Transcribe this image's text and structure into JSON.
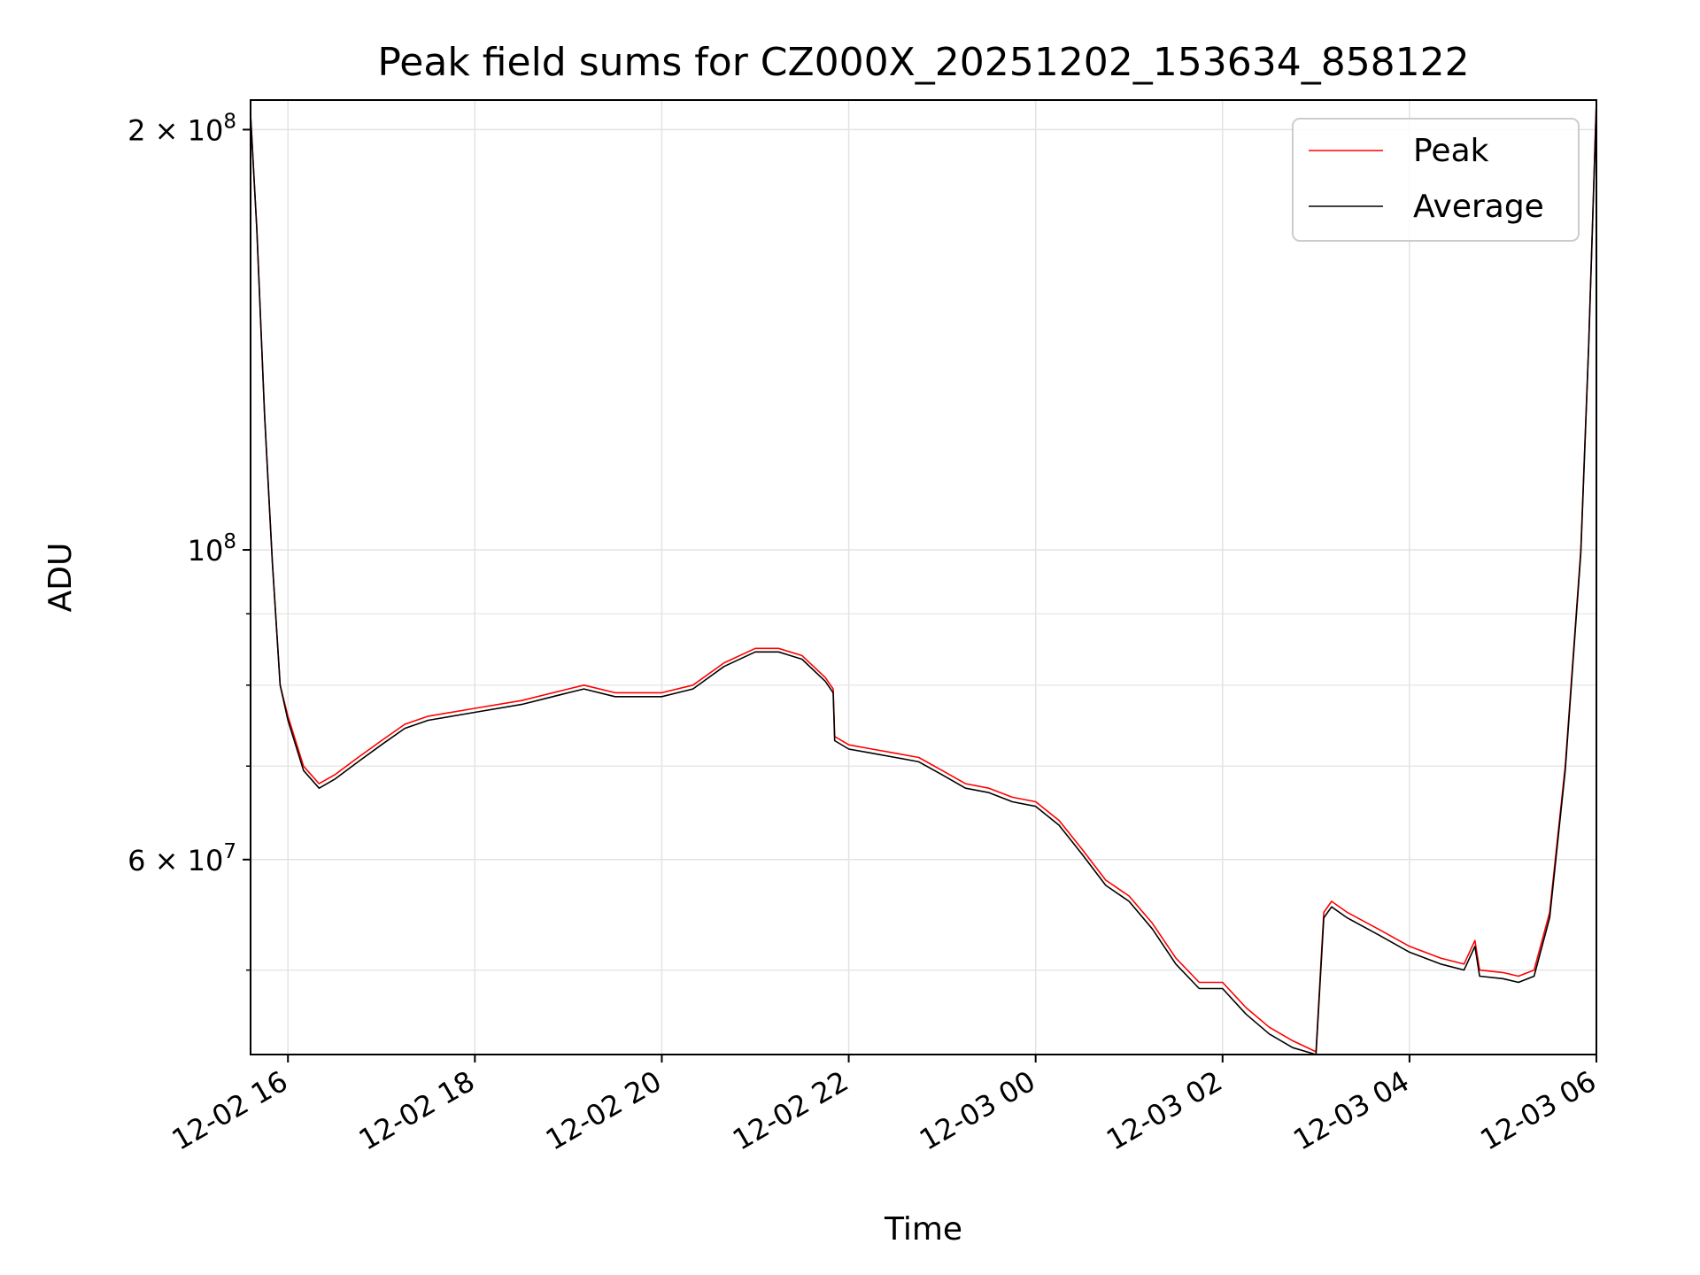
{
  "chart_data": {
    "type": "line",
    "title": "Peak field sums for CZ000X_20251202_153634_858122",
    "xlabel": "Time",
    "ylabel": "ADU",
    "yscale": "log",
    "grid": true,
    "legend_position": "top-right",
    "xlim": [
      "2025-12-02 15:36",
      "2025-12-03 06:00"
    ],
    "ylim": [
      43500000,
      210000000
    ],
    "x_ticks": [
      {
        "value": "2025-12-02 16:00",
        "label": "12-02 16"
      },
      {
        "value": "2025-12-02 18:00",
        "label": "12-02 18"
      },
      {
        "value": "2025-12-02 20:00",
        "label": "12-02 20"
      },
      {
        "value": "2025-12-02 22:00",
        "label": "12-02 22"
      },
      {
        "value": "2025-12-03 00:00",
        "label": "12-03 00"
      },
      {
        "value": "2025-12-03 02:00",
        "label": "12-03 02"
      },
      {
        "value": "2025-12-03 04:00",
        "label": "12-03 04"
      },
      {
        "value": "2025-12-03 06:00",
        "label": "12-03 06"
      }
    ],
    "y_major_ticks": [
      {
        "value": 200000000,
        "label_base": "2 × 10",
        "label_exp": "8"
      },
      {
        "value": 100000000,
        "label_base": "10",
        "label_exp": "8"
      },
      {
        "value": 60000000,
        "label_base": "6 × 10",
        "label_exp": "7"
      }
    ],
    "y_minor_ticks": [
      50000000,
      70000000,
      80000000,
      90000000
    ],
    "series": [
      {
        "name": "Peak",
        "color": "#ff0000",
        "x": [
          "2025-12-02 15:36",
          "2025-12-02 15:40",
          "2025-12-02 15:45",
          "2025-12-02 15:50",
          "2025-12-02 15:55",
          "2025-12-02 16:00",
          "2025-12-02 16:10",
          "2025-12-02 16:20",
          "2025-12-02 16:30",
          "2025-12-02 16:45",
          "2025-12-02 17:00",
          "2025-12-02 17:15",
          "2025-12-02 17:30",
          "2025-12-02 18:00",
          "2025-12-02 18:30",
          "2025-12-02 19:00",
          "2025-12-02 19:10",
          "2025-12-02 19:30",
          "2025-12-02 20:00",
          "2025-12-02 20:20",
          "2025-12-02 20:40",
          "2025-12-02 21:00",
          "2025-12-02 21:15",
          "2025-12-02 21:30",
          "2025-12-02 21:45",
          "2025-12-02 21:50",
          "2025-12-02 21:51",
          "2025-12-02 22:00",
          "2025-12-02 22:15",
          "2025-12-02 22:30",
          "2025-12-02 22:45",
          "2025-12-02 23:00",
          "2025-12-02 23:15",
          "2025-12-02 23:30",
          "2025-12-02 23:45",
          "2025-12-03 00:00",
          "2025-12-03 00:15",
          "2025-12-03 00:30",
          "2025-12-03 00:45",
          "2025-12-03 01:00",
          "2025-12-03 01:15",
          "2025-12-03 01:30",
          "2025-12-03 01:45",
          "2025-12-03 02:00",
          "2025-12-03 02:15",
          "2025-12-03 02:30",
          "2025-12-03 02:45",
          "2025-12-03 03:00",
          "2025-12-03 03:05",
          "2025-12-03 03:10",
          "2025-12-03 03:20",
          "2025-12-03 03:40",
          "2025-12-03 04:00",
          "2025-12-03 04:20",
          "2025-12-03 04:35",
          "2025-12-03 04:42",
          "2025-12-03 04:45",
          "2025-12-03 05:00",
          "2025-12-03 05:10",
          "2025-12-03 05:20",
          "2025-12-03 05:30",
          "2025-12-03 05:40",
          "2025-12-03 05:50",
          "2025-12-03 05:55",
          "2025-12-03 06:00"
        ],
        "y": [
          205000000,
          170000000,
          125000000,
          98000000,
          80000000,
          76000000,
          70000000,
          68000000,
          69000000,
          71000000,
          73000000,
          75000000,
          76000000,
          77000000,
          78000000,
          79500000,
          80000000,
          79000000,
          79000000,
          80000000,
          83000000,
          85000000,
          85000000,
          84000000,
          81000000,
          79500000,
          73500000,
          72500000,
          72000000,
          71500000,
          71000000,
          69500000,
          68000000,
          67500000,
          66500000,
          66000000,
          64000000,
          61000000,
          58000000,
          56500000,
          54000000,
          51000000,
          49000000,
          49000000,
          47000000,
          45500000,
          44500000,
          43700000,
          55000000,
          56000000,
          55000000,
          53500000,
          52000000,
          51000000,
          50500000,
          52500000,
          50000000,
          49800000,
          49500000,
          50000000,
          55000000,
          70000000,
          100000000,
          140000000,
          210000000
        ]
      },
      {
        "name": "Average",
        "color": "#000000",
        "x": [
          "2025-12-02 15:36",
          "2025-12-02 15:40",
          "2025-12-02 15:45",
          "2025-12-02 15:50",
          "2025-12-02 15:55",
          "2025-12-02 16:00",
          "2025-12-02 16:10",
          "2025-12-02 16:20",
          "2025-12-02 16:30",
          "2025-12-02 16:45",
          "2025-12-02 17:00",
          "2025-12-02 17:15",
          "2025-12-02 17:30",
          "2025-12-02 18:00",
          "2025-12-02 18:30",
          "2025-12-02 19:00",
          "2025-12-02 19:10",
          "2025-12-02 19:30",
          "2025-12-02 20:00",
          "2025-12-02 20:20",
          "2025-12-02 20:40",
          "2025-12-02 21:00",
          "2025-12-02 21:15",
          "2025-12-02 21:30",
          "2025-12-02 21:45",
          "2025-12-02 21:50",
          "2025-12-02 21:51",
          "2025-12-02 22:00",
          "2025-12-02 22:15",
          "2025-12-02 22:30",
          "2025-12-02 22:45",
          "2025-12-02 23:00",
          "2025-12-02 23:15",
          "2025-12-02 23:30",
          "2025-12-02 23:45",
          "2025-12-03 00:00",
          "2025-12-03 00:15",
          "2025-12-03 00:30",
          "2025-12-03 00:45",
          "2025-12-03 01:00",
          "2025-12-03 01:15",
          "2025-12-03 01:30",
          "2025-12-03 01:45",
          "2025-12-03 02:00",
          "2025-12-03 02:15",
          "2025-12-03 02:30",
          "2025-12-03 02:45",
          "2025-12-03 03:00",
          "2025-12-03 03:05",
          "2025-12-03 03:10",
          "2025-12-03 03:20",
          "2025-12-03 03:40",
          "2025-12-03 04:00",
          "2025-12-03 04:20",
          "2025-12-03 04:35",
          "2025-12-03 04:42",
          "2025-12-03 04:45",
          "2025-12-03 05:00",
          "2025-12-03 05:10",
          "2025-12-03 05:20",
          "2025-12-03 05:30",
          "2025-12-03 05:40",
          "2025-12-03 05:50",
          "2025-12-03 05:55",
          "2025-12-03 06:00"
        ],
        "y": [
          205000000,
          170000000,
          125000000,
          98000000,
          80000000,
          75500000,
          69500000,
          67500000,
          68500000,
          70500000,
          72500000,
          74500000,
          75500000,
          76500000,
          77500000,
          79000000,
          79500000,
          78500000,
          78500000,
          79500000,
          82500000,
          84500000,
          84500000,
          83500000,
          80500000,
          79000000,
          73000000,
          72000000,
          71500000,
          71000000,
          70500000,
          69000000,
          67500000,
          67000000,
          66000000,
          65500000,
          63500000,
          60500000,
          57500000,
          56000000,
          53500000,
          50500000,
          48500000,
          48500000,
          46500000,
          45000000,
          44000000,
          43500000,
          54500000,
          55500000,
          54500000,
          53000000,
          51500000,
          50500000,
          50000000,
          52000000,
          49500000,
          49300000,
          49000000,
          49500000,
          54500000,
          69500000,
          99500000,
          139500000,
          209000000
        ]
      }
    ]
  }
}
